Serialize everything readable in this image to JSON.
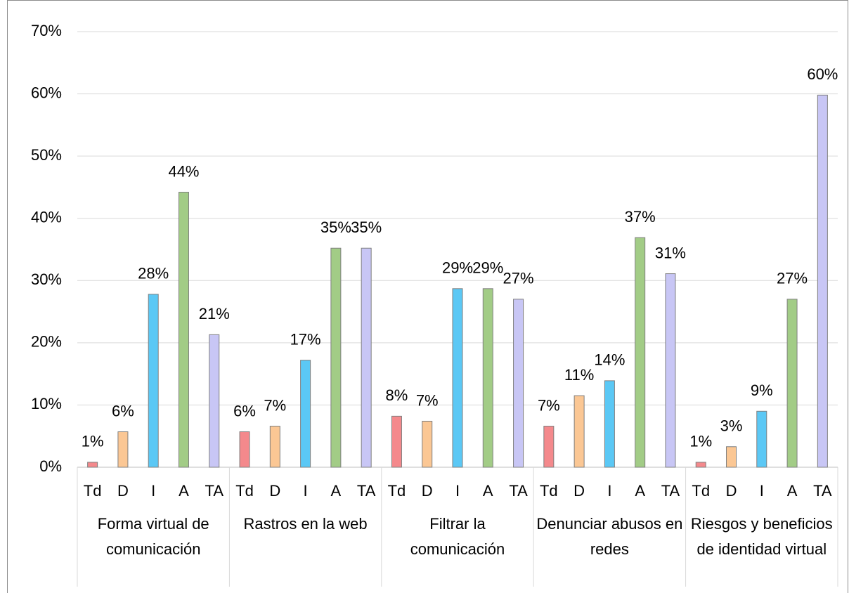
{
  "chart_data": {
    "type": "bar",
    "categories": [
      "Forma virtual de comunicación",
      "Rastros en la web",
      "Filtrar la comunicación",
      "Denunciar abusos en redes",
      "Riesgos y beneficios de identidad virtual"
    ],
    "subcategories": [
      "Td",
      "D",
      "I",
      "A",
      "TA"
    ],
    "series": [
      {
        "color": "#f4898c",
        "values": [
          0.8,
          5.7,
          8.2,
          6.6,
          0.8
        ],
        "value_labels": [
          "1%",
          "6%",
          "8%",
          "7%",
          "1%"
        ]
      },
      {
        "color": "#fbc794",
        "values": [
          5.7,
          6.6,
          7.4,
          11.5,
          3.3
        ],
        "value_labels": [
          "6%",
          "7%",
          "7%",
          "11%",
          "3%"
        ]
      },
      {
        "color": "#5bc8f5",
        "values": [
          27.8,
          17.2,
          28.7,
          13.9,
          9.0
        ],
        "value_labels": [
          "28%",
          "17%",
          "29%",
          "14%",
          "9%"
        ]
      },
      {
        "color": "#a2cc86",
        "values": [
          44.2,
          35.2,
          28.7,
          36.9,
          27.0
        ],
        "value_labels": [
          "44%",
          "35%",
          "29%",
          "37%",
          "27%"
        ]
      },
      {
        "color": "#c8c6f5",
        "values": [
          21.3,
          35.2,
          27.0,
          31.1,
          59.8
        ],
        "value_labels": [
          "21%",
          "35%",
          "27%",
          "31%",
          "60%"
        ]
      }
    ],
    "ylim": [
      0,
      70
    ],
    "yticks": [
      {
        "value": 0,
        "label": "0%"
      },
      {
        "value": 10,
        "label": "10%"
      },
      {
        "value": 20,
        "label": "20%"
      },
      {
        "value": 30,
        "label": "30%"
      },
      {
        "value": 40,
        "label": "40%"
      },
      {
        "value": 50,
        "label": "50%"
      },
      {
        "value": 60,
        "label": "60%"
      },
      {
        "value": 70,
        "label": "70%"
      }
    ],
    "grid": true
  }
}
